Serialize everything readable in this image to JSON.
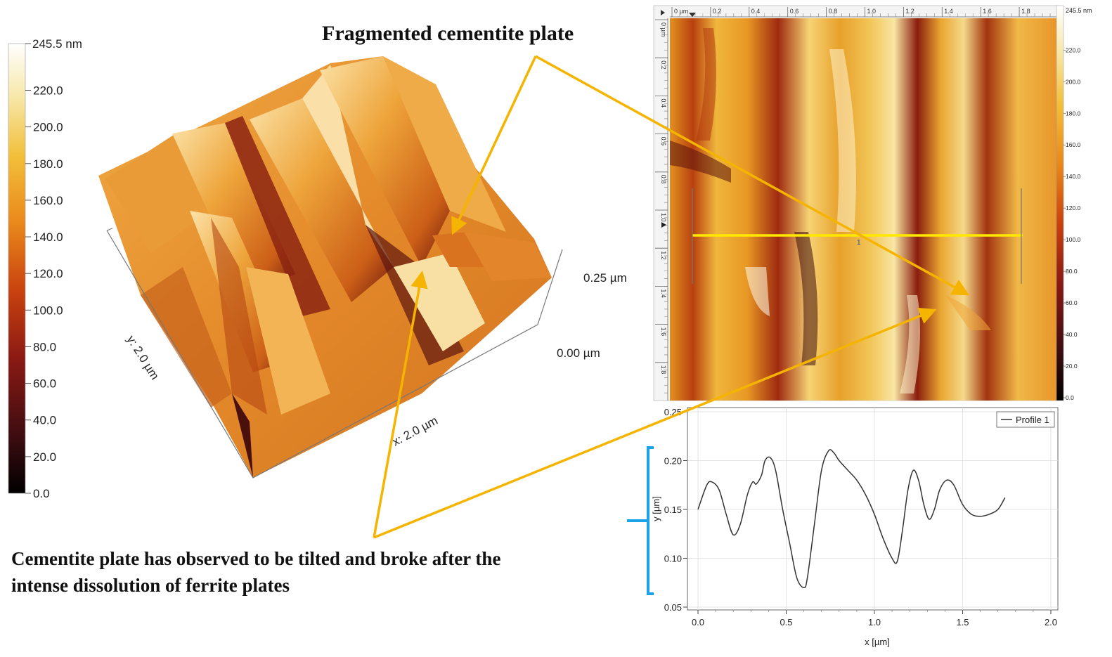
{
  "colorbar_left": {
    "max_label": "245.5 nm",
    "ticks": [
      "220.0",
      "200.0",
      "180.0",
      "160.0",
      "140.0",
      "120.0",
      "100.0",
      "80.0",
      "60.0",
      "40.0",
      "20.0",
      "0.0"
    ]
  },
  "surface3d": {
    "x_axis_label": "x: 2.0 µm",
    "y_axis_label": "y: 2.0 µm",
    "z_top_label": "0.25 µm",
    "z_bottom_label": "0.00 µm"
  },
  "annotations": {
    "top": "Fragmented cementite plate",
    "bottom_line1": "Cementite plate has observed to be tilted and broke after the",
    "bottom_line2": "intense dissolution of ferrite plates"
  },
  "afm_map": {
    "x_ticks": [
      "0 µm",
      "0.2",
      "0.4",
      "0.6",
      "0.8",
      "1.0",
      "1.2",
      "1.4",
      "1.6",
      "1.8"
    ],
    "y_ticks": [
      "0 µm",
      "0.2",
      "0.4",
      "0.6",
      "0.8",
      "1.0",
      "1.2",
      "1.4",
      "1.6",
      "1.8"
    ],
    "profile_marker": "1",
    "colorbar_max": "245.5 nm",
    "colorbar_ticks": [
      "220.0",
      "200.0",
      "180.0",
      "160.0",
      "140.0",
      "120.0",
      "100.0",
      "80.0",
      "60.0",
      "40.0",
      "20.0",
      "0.0"
    ]
  },
  "chart_data": {
    "type": "line",
    "xlabel": "x [µm]",
    "ylabel": "y [µm]",
    "xlim": [
      0,
      2.0
    ],
    "ylim": [
      0.05,
      0.25
    ],
    "x_ticks": [
      "0.0",
      "0.5",
      "1.0",
      "1.5",
      "2.0"
    ],
    "y_ticks": [
      "0.25",
      "0.20",
      "0.15",
      "0.10",
      "0.05"
    ],
    "legend_position": "top-right",
    "series": [
      {
        "name": "Profile 1",
        "x": [
          0.0,
          0.05,
          0.08,
          0.12,
          0.16,
          0.2,
          0.24,
          0.28,
          0.31,
          0.33,
          0.36,
          0.38,
          0.41,
          0.44,
          0.48,
          0.52,
          0.56,
          0.6,
          0.62,
          0.66,
          0.7,
          0.74,
          0.77,
          0.8,
          0.85,
          0.9,
          0.95,
          1.0,
          1.05,
          1.1,
          1.13,
          1.16,
          1.19,
          1.22,
          1.25,
          1.28,
          1.31,
          1.34,
          1.37,
          1.41,
          1.45,
          1.5,
          1.55,
          1.6,
          1.65,
          1.7,
          1.74
        ],
        "y": [
          0.15,
          0.175,
          0.178,
          0.17,
          0.145,
          0.124,
          0.135,
          0.165,
          0.178,
          0.176,
          0.185,
          0.2,
          0.203,
          0.19,
          0.15,
          0.115,
          0.08,
          0.07,
          0.08,
          0.135,
          0.19,
          0.21,
          0.208,
          0.2,
          0.19,
          0.18,
          0.165,
          0.145,
          0.12,
          0.1,
          0.097,
          0.13,
          0.17,
          0.19,
          0.18,
          0.155,
          0.14,
          0.15,
          0.17,
          0.18,
          0.175,
          0.155,
          0.145,
          0.143,
          0.145,
          0.15,
          0.162
        ]
      }
    ]
  }
}
